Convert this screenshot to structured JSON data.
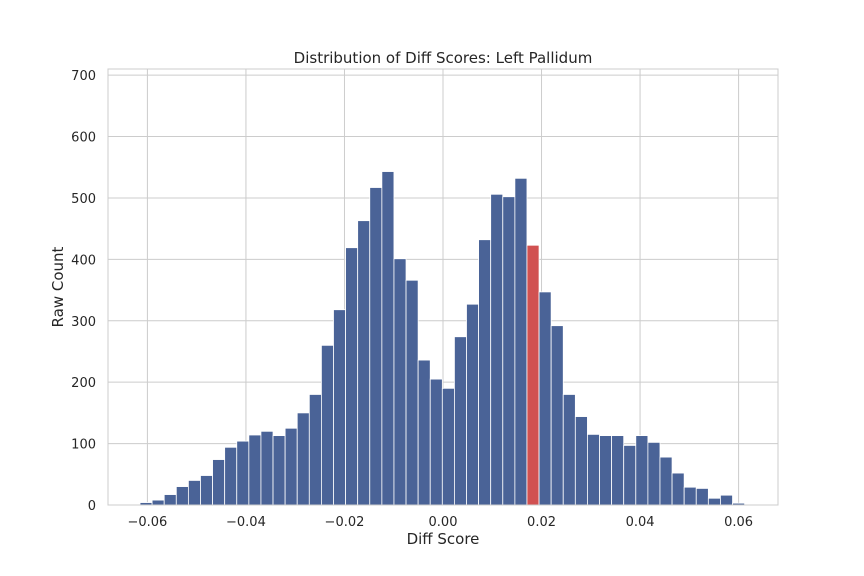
{
  "chart_data": {
    "type": "bar",
    "title": "Distribution of Diff Scores: Left Pallidum",
    "xlabel": "Diff Score",
    "ylabel": "Raw Count",
    "xlim": [
      -0.068,
      0.068
    ],
    "ylim": [
      0,
      710
    ],
    "xticks": [
      -0.06,
      -0.04,
      -0.02,
      0.0,
      0.02,
      0.04,
      0.06
    ],
    "xtick_labels": [
      "−0.06",
      "−0.04",
      "−0.02",
      "0.00",
      "0.02",
      "0.04",
      "0.06"
    ],
    "yticks": [
      0,
      100,
      200,
      300,
      400,
      500,
      600,
      700
    ],
    "ytick_labels": [
      "0",
      "100",
      "200",
      "300",
      "400",
      "500",
      "600",
      "700"
    ],
    "grid": true,
    "bin_start": -0.0615,
    "bin_width": 0.0024545,
    "values": [
      4,
      8,
      17,
      30,
      40,
      48,
      74,
      94,
      104,
      114,
      120,
      113,
      125,
      150,
      180,
      260,
      318,
      419,
      463,
      517,
      543,
      401,
      366,
      236,
      205,
      190,
      274,
      327,
      432,
      506,
      502,
      532,
      423,
      347,
      292,
      180,
      144,
      115,
      113,
      113,
      97,
      113,
      102,
      78,
      52,
      29,
      27,
      11,
      16,
      3
    ],
    "highlight_index": 32,
    "colors": {
      "bar": "#4a6397",
      "highlight": "#d15151"
    }
  }
}
